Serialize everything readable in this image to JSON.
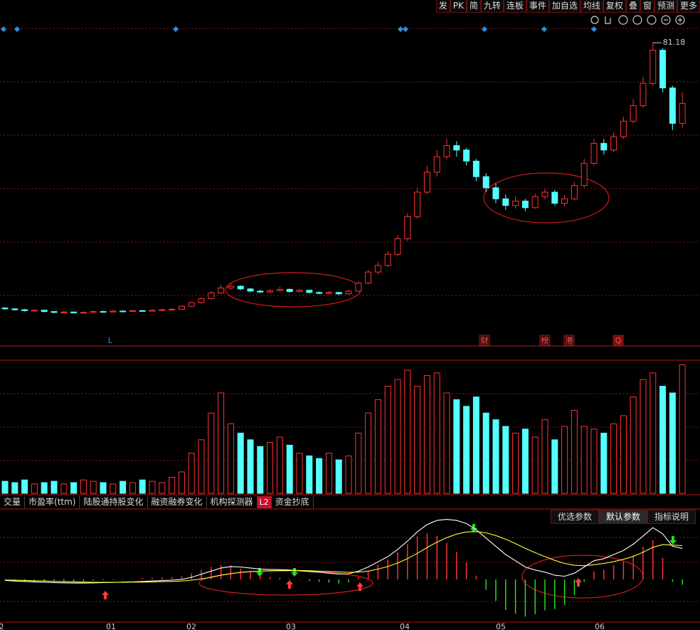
{
  "toolbar": [
    "发",
    "PK",
    "简",
    "九转",
    "连板",
    "事件",
    "加自选",
    "均线",
    "复权",
    "叠",
    "窗",
    "预测",
    "更多"
  ],
  "event_labels": [
    "L",
    "财",
    "榜",
    "港",
    "Q"
  ],
  "indicator_tabs": [
    "交量",
    "市盈率(ttm)",
    "陆股通持股变化",
    "融资融券变化",
    "机构探测器",
    "L2",
    "资金抄底"
  ],
  "indicator_buttons": [
    "优选参数",
    "默认参数",
    "指标说明"
  ],
  "x_axis_labels": [
    "2",
    "01",
    "02",
    "03",
    "04",
    "05",
    "06"
  ],
  "chart_data": [
    {
      "type": "candlestick",
      "up_color": "#ff3232",
      "down_color": "#54ffff",
      "ylim": [
        13,
        86
      ],
      "candles": [
        [
          21.4,
          21.2,
          21.6,
          21.0
        ],
        [
          21.2,
          21.0,
          21.4,
          20.8
        ],
        [
          21.0,
          20.8,
          21.2,
          20.6
        ],
        [
          20.7,
          20.9,
          21.1,
          20.6
        ],
        [
          20.9,
          20.6,
          21.0,
          20.4
        ],
        [
          20.6,
          20.4,
          20.7,
          20.2
        ],
        [
          20.3,
          20.5,
          20.7,
          20.2
        ],
        [
          20.5,
          20.3,
          20.6,
          20.1
        ],
        [
          20.3,
          20.4,
          20.6,
          20.2
        ],
        [
          20.4,
          20.6,
          20.8,
          20.3
        ],
        [
          20.6,
          20.5,
          20.8,
          20.3
        ],
        [
          20.5,
          20.7,
          20.9,
          20.4
        ],
        [
          20.7,
          20.6,
          20.9,
          20.5
        ],
        [
          20.6,
          20.8,
          21.0,
          20.5
        ],
        [
          20.8,
          20.7,
          21.0,
          20.6
        ],
        [
          20.7,
          20.9,
          21.1,
          20.6
        ],
        [
          20.9,
          21.0,
          21.3,
          20.8
        ],
        [
          21.0,
          21.1,
          21.4,
          20.9
        ],
        [
          21.1,
          21.8,
          22.0,
          21.0
        ],
        [
          21.8,
          22.6,
          22.8,
          21.6
        ],
        [
          22.6,
          23.5,
          23.8,
          22.4
        ],
        [
          23.5,
          24.8,
          25.2,
          23.3
        ],
        [
          24.8,
          25.9,
          26.6,
          24.6
        ],
        [
          25.9,
          26.3,
          27.0,
          25.6
        ],
        [
          26.3,
          25.7,
          26.5,
          25.4
        ],
        [
          25.7,
          25.2,
          25.9,
          25.0
        ],
        [
          25.2,
          25.0,
          25.5,
          24.8
        ],
        [
          25.0,
          25.3,
          25.6,
          24.8
        ],
        [
          25.3,
          25.6,
          26.2,
          25.1
        ],
        [
          25.6,
          25.1,
          25.8,
          24.9
        ],
        [
          25.1,
          25.4,
          25.7,
          24.9
        ],
        [
          25.4,
          24.9,
          25.5,
          24.7
        ],
        [
          24.9,
          24.7,
          25.1,
          24.5
        ],
        [
          24.7,
          24.9,
          25.2,
          24.5
        ],
        [
          24.9,
          24.6,
          25.0,
          24.3
        ],
        [
          24.6,
          25.2,
          25.5,
          24.4
        ],
        [
          25.2,
          27.0,
          27.4,
          25.0
        ],
        [
          27.0,
          29.5,
          30.0,
          26.8
        ],
        [
          29.5,
          31.0,
          31.8,
          29.0
        ],
        [
          31.0,
          33.5,
          34.2,
          30.6
        ],
        [
          33.5,
          37.0,
          37.8,
          33.0
        ],
        [
          37.0,
          42.0,
          42.8,
          36.5
        ],
        [
          42.0,
          47.5,
          48.5,
          41.5
        ],
        [
          47.5,
          52.0,
          53.5,
          47.0
        ],
        [
          52.0,
          55.5,
          57.0,
          51.0
        ],
        [
          55.5,
          58.0,
          59.5,
          54.8
        ],
        [
          58.0,
          57.0,
          59.0,
          55.5
        ],
        [
          57.0,
          54.5,
          57.5,
          53.5
        ],
        [
          54.5,
          51.0,
          55.0,
          50.0
        ],
        [
          51.0,
          48.5,
          51.8,
          47.5
        ],
        [
          48.5,
          46.0,
          49.5,
          45.0
        ],
        [
          46.0,
          44.5,
          47.0,
          43.5
        ],
        [
          44.5,
          45.5,
          46.5,
          43.8
        ],
        [
          45.5,
          44.0,
          46.0,
          43.2
        ],
        [
          44.0,
          46.5,
          47.2,
          43.8
        ],
        [
          46.5,
          47.5,
          48.2,
          45.8
        ],
        [
          47.5,
          45.0,
          48.0,
          44.5
        ],
        [
          45.0,
          46.0,
          46.8,
          44.2
        ],
        [
          46.0,
          49.0,
          49.8,
          45.6
        ],
        [
          49.0,
          54.0,
          55.0,
          48.5
        ],
        [
          54.0,
          58.5,
          59.5,
          53.5
        ],
        [
          58.5,
          57.0,
          59.5,
          56.0
        ],
        [
          57.0,
          60.0,
          61.0,
          56.5
        ],
        [
          60.0,
          63.5,
          64.5,
          59.5
        ],
        [
          63.5,
          67.0,
          68.5,
          63.0
        ],
        [
          67.0,
          72.0,
          73.5,
          66.5
        ],
        [
          72.0,
          79.5,
          81.18,
          71.5
        ],
        [
          79.5,
          71.0,
          80.0,
          70.0
        ],
        [
          71.0,
          63.0,
          71.5,
          61.5
        ],
        [
          63.0,
          67.5,
          70.0,
          62.0
        ]
      ]
    },
    {
      "type": "volume",
      "ylim": [
        0,
        100
      ],
      "values": [
        9,
        8,
        10,
        7,
        8,
        9,
        7,
        8,
        10,
        9,
        8,
        7,
        9,
        8,
        10,
        9,
        8,
        12,
        16,
        30,
        40,
        60,
        75,
        52,
        45,
        40,
        35,
        38,
        42,
        36,
        30,
        28,
        26,
        30,
        25,
        28,
        45,
        60,
        70,
        80,
        85,
        92,
        80,
        88,
        90,
        75,
        70,
        65,
        72,
        60,
        55,
        50,
        45,
        48,
        42,
        55,
        40,
        50,
        62,
        50,
        48,
        45,
        52,
        58,
        72,
        85,
        90,
        80,
        75,
        96
      ]
    },
    {
      "type": "macd",
      "ylim": [
        -2,
        3.3
      ],
      "up_color": "#ff3232",
      "down_color": "#22dd22",
      "hist": [
        -0.04,
        -0.08,
        -0.1,
        -0.1,
        -0.12,
        -0.12,
        -0.12,
        -0.12,
        -0.1,
        -0.06,
        -0.04,
        -0.02,
        0.02,
        0.02,
        0.06,
        0.08,
        0.1,
        0.12,
        0.16,
        0.28,
        0.46,
        0.6,
        0.7,
        0.68,
        0.52,
        0.34,
        0.2,
        0.12,
        0.08,
        0.04,
        -0.02,
        -0.08,
        -0.12,
        -0.16,
        -0.2,
        -0.14,
        0.1,
        0.4,
        0.7,
        0.96,
        1.32,
        1.7,
        2.08,
        2.22,
        2.1,
        1.76,
        1.32,
        0.82,
        0.18,
        -0.5,
        -1.04,
        -1.48,
        -1.66,
        -1.8,
        -1.68,
        -1.5,
        -1.44,
        -1.24,
        -0.76,
        -0.12,
        0.38,
        0.46,
        0.68,
        0.86,
        1.18,
        1.58,
        1.9,
        1.04,
        -0.12,
        -0.26
      ],
      "lines": [
        {
          "color": "#ffffff",
          "values": [
            -0.05,
            -0.08,
            -0.1,
            -0.12,
            -0.14,
            -0.16,
            -0.17,
            -0.18,
            -0.18,
            -0.17,
            -0.16,
            -0.15,
            -0.13,
            -0.12,
            -0.1,
            -0.08,
            -0.06,
            -0.04,
            0.0,
            0.1,
            0.25,
            0.4,
            0.55,
            0.62,
            0.6,
            0.55,
            0.5,
            0.48,
            0.47,
            0.45,
            0.42,
            0.38,
            0.34,
            0.3,
            0.26,
            0.27,
            0.4,
            0.6,
            0.85,
            1.1,
            1.45,
            1.85,
            2.3,
            2.65,
            2.85,
            2.9,
            2.85,
            2.7,
            2.4,
            2.0,
            1.6,
            1.2,
            0.9,
            0.6,
            0.45,
            0.35,
            0.2,
            0.15,
            0.3,
            0.6,
            0.9,
            1.0,
            1.2,
            1.4,
            1.7,
            2.1,
            2.5,
            2.2,
            1.6,
            1.5
          ]
        },
        {
          "color": "#ffff33",
          "values": [
            -0.03,
            -0.04,
            -0.05,
            -0.07,
            -0.08,
            -0.1,
            -0.11,
            -0.12,
            -0.13,
            -0.14,
            -0.14,
            -0.14,
            -0.14,
            -0.13,
            -0.13,
            -0.12,
            -0.11,
            -0.1,
            -0.08,
            -0.04,
            0.02,
            0.1,
            0.2,
            0.28,
            0.34,
            0.38,
            0.4,
            0.42,
            0.43,
            0.43,
            0.43,
            0.42,
            0.4,
            0.38,
            0.36,
            0.34,
            0.35,
            0.4,
            0.5,
            0.62,
            0.79,
            1.0,
            1.26,
            1.54,
            1.8,
            2.02,
            2.19,
            2.29,
            2.31,
            2.25,
            2.12,
            1.94,
            1.73,
            1.5,
            1.29,
            1.1,
            0.92,
            0.77,
            0.68,
            0.66,
            0.71,
            0.77,
            0.86,
            0.97,
            1.11,
            1.31,
            1.55,
            1.68,
            1.66,
            1.63
          ]
        }
      ]
    }
  ]
}
